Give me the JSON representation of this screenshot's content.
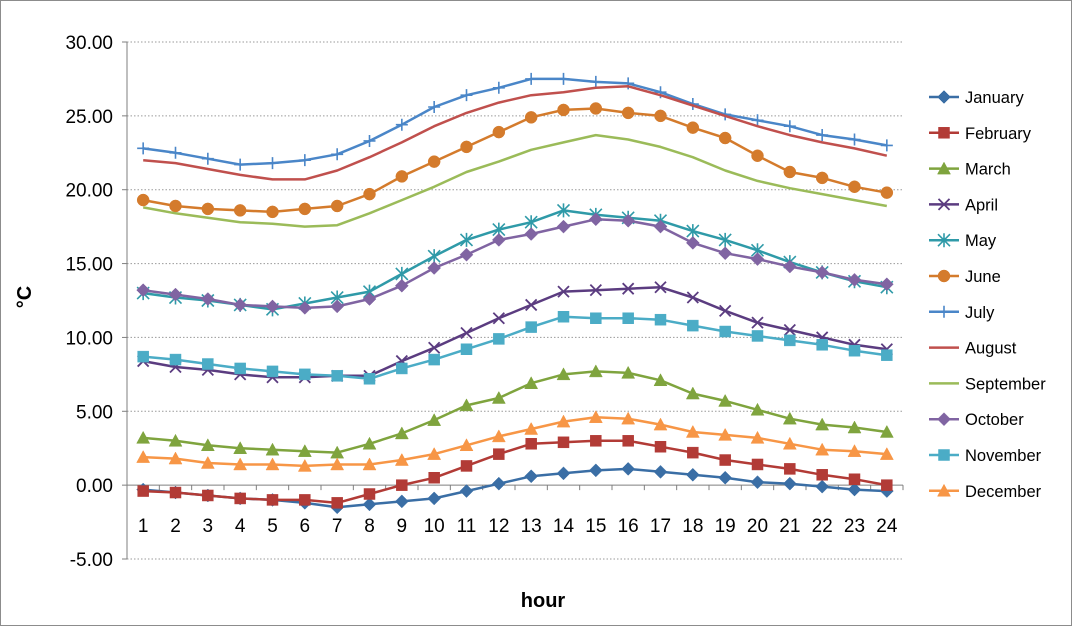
{
  "chart_data": {
    "type": "line",
    "xlabel": "hour",
    "ylabel": "°C",
    "categories": [
      "1",
      "2",
      "3",
      "4",
      "5",
      "6",
      "7",
      "8",
      "9",
      "10",
      "11",
      "12",
      "13",
      "14",
      "15",
      "16",
      "17",
      "18",
      "19",
      "20",
      "21",
      "22",
      "23",
      "24"
    ],
    "ylim": [
      -5,
      30
    ],
    "yticks": [
      "-5.00",
      "0.00",
      "5.00",
      "10.00",
      "15.00",
      "20.00",
      "25.00",
      "30.00"
    ],
    "ytick_values": [
      -5,
      0,
      5,
      10,
      15,
      20,
      25,
      30
    ],
    "grid": "horizontal dotted",
    "legend_position": "right",
    "series": [
      {
        "name": "January",
        "color": "#3a6ea5",
        "marker": "diamond",
        "values": [
          -0.3,
          -0.5,
          -0.7,
          -0.9,
          -1.0,
          -1.2,
          -1.5,
          -1.3,
          -1.1,
          -0.9,
          -0.4,
          0.1,
          0.6,
          0.8,
          1.0,
          1.1,
          0.9,
          0.7,
          0.5,
          0.2,
          0.1,
          -0.1,
          -0.3,
          -0.4
        ]
      },
      {
        "name": "February",
        "color": "#b23b36",
        "marker": "square",
        "values": [
          -0.4,
          -0.5,
          -0.7,
          -0.9,
          -1.0,
          -1.0,
          -1.2,
          -0.6,
          0.0,
          0.5,
          1.3,
          2.1,
          2.8,
          2.9,
          3.0,
          3.0,
          2.6,
          2.2,
          1.7,
          1.4,
          1.1,
          0.7,
          0.4,
          0.0
        ]
      },
      {
        "name": "March",
        "color": "#7fa43e",
        "marker": "triangle",
        "values": [
          3.2,
          3.0,
          2.7,
          2.5,
          2.4,
          2.3,
          2.2,
          2.8,
          3.5,
          4.4,
          5.4,
          5.9,
          6.9,
          7.5,
          7.7,
          7.6,
          7.1,
          6.2,
          5.7,
          5.1,
          4.5,
          4.1,
          3.9,
          3.6
        ]
      },
      {
        "name": "April",
        "color": "#5b3c80",
        "marker": "x",
        "values": [
          8.4,
          8.0,
          7.8,
          7.5,
          7.3,
          7.3,
          7.4,
          7.4,
          8.4,
          9.3,
          10.3,
          11.3,
          12.2,
          13.1,
          13.2,
          13.3,
          13.4,
          12.7,
          11.8,
          11.0,
          10.5,
          10.0,
          9.5,
          9.2
        ]
      },
      {
        "name": "May",
        "color": "#2f9aa8",
        "marker": "star",
        "values": [
          13.0,
          12.7,
          12.5,
          12.2,
          11.9,
          12.3,
          12.7,
          13.1,
          14.3,
          15.5,
          16.6,
          17.3,
          17.8,
          18.6,
          18.3,
          18.1,
          17.9,
          17.2,
          16.6,
          15.9,
          15.1,
          14.4,
          13.8,
          13.4
        ]
      },
      {
        "name": "June",
        "color": "#d47b2c",
        "marker": "circle",
        "values": [
          19.3,
          18.9,
          18.7,
          18.6,
          18.5,
          18.7,
          18.9,
          19.7,
          20.9,
          21.9,
          22.9,
          23.9,
          24.9,
          25.4,
          25.5,
          25.2,
          25.0,
          24.2,
          23.5,
          22.3,
          21.2,
          20.8,
          20.2,
          19.8
        ]
      },
      {
        "name": "July",
        "color": "#4a86c8",
        "marker": "plus",
        "values": [
          22.8,
          22.5,
          22.1,
          21.7,
          21.8,
          22.0,
          22.4,
          23.3,
          24.4,
          25.6,
          26.4,
          26.9,
          27.5,
          27.5,
          27.3,
          27.2,
          26.6,
          25.8,
          25.1,
          24.7,
          24.3,
          23.7,
          23.4,
          23.0
        ]
      },
      {
        "name": "August",
        "color": "#c0504d",
        "marker": "none",
        "values": [
          22.0,
          21.8,
          21.4,
          21.0,
          20.7,
          20.7,
          21.3,
          22.2,
          23.2,
          24.3,
          25.2,
          25.9,
          26.4,
          26.6,
          26.9,
          27.0,
          26.4,
          25.7,
          25.0,
          24.3,
          23.7,
          23.2,
          22.8,
          22.3
        ]
      },
      {
        "name": "September",
        "color": "#9bbb59",
        "marker": "none",
        "values": [
          18.8,
          18.4,
          18.1,
          17.8,
          17.7,
          17.5,
          17.6,
          18.4,
          19.3,
          20.2,
          21.2,
          21.9,
          22.7,
          23.2,
          23.7,
          23.4,
          22.9,
          22.2,
          21.3,
          20.6,
          20.1,
          19.7,
          19.3,
          18.9
        ]
      },
      {
        "name": "October",
        "color": "#8064a2",
        "marker": "diamond",
        "values": [
          13.2,
          12.9,
          12.6,
          12.2,
          12.1,
          12.0,
          12.1,
          12.6,
          13.5,
          14.7,
          15.6,
          16.6,
          17.0,
          17.5,
          18.0,
          17.9,
          17.5,
          16.4,
          15.7,
          15.3,
          14.8,
          14.4,
          13.9,
          13.6
        ]
      },
      {
        "name": "November",
        "color": "#4bacc6",
        "marker": "square",
        "values": [
          8.7,
          8.5,
          8.2,
          7.9,
          7.7,
          7.5,
          7.4,
          7.2,
          7.9,
          8.5,
          9.2,
          9.9,
          10.7,
          11.4,
          11.3,
          11.3,
          11.2,
          10.8,
          10.4,
          10.1,
          9.8,
          9.5,
          9.1,
          8.8
        ]
      },
      {
        "name": "December",
        "color": "#f79646",
        "marker": "triangle",
        "values": [
          1.9,
          1.8,
          1.5,
          1.4,
          1.4,
          1.3,
          1.4,
          1.4,
          1.7,
          2.1,
          2.7,
          3.3,
          3.8,
          4.3,
          4.6,
          4.5,
          4.1,
          3.6,
          3.4,
          3.2,
          2.8,
          2.4,
          2.3,
          2.1
        ]
      }
    ]
  }
}
